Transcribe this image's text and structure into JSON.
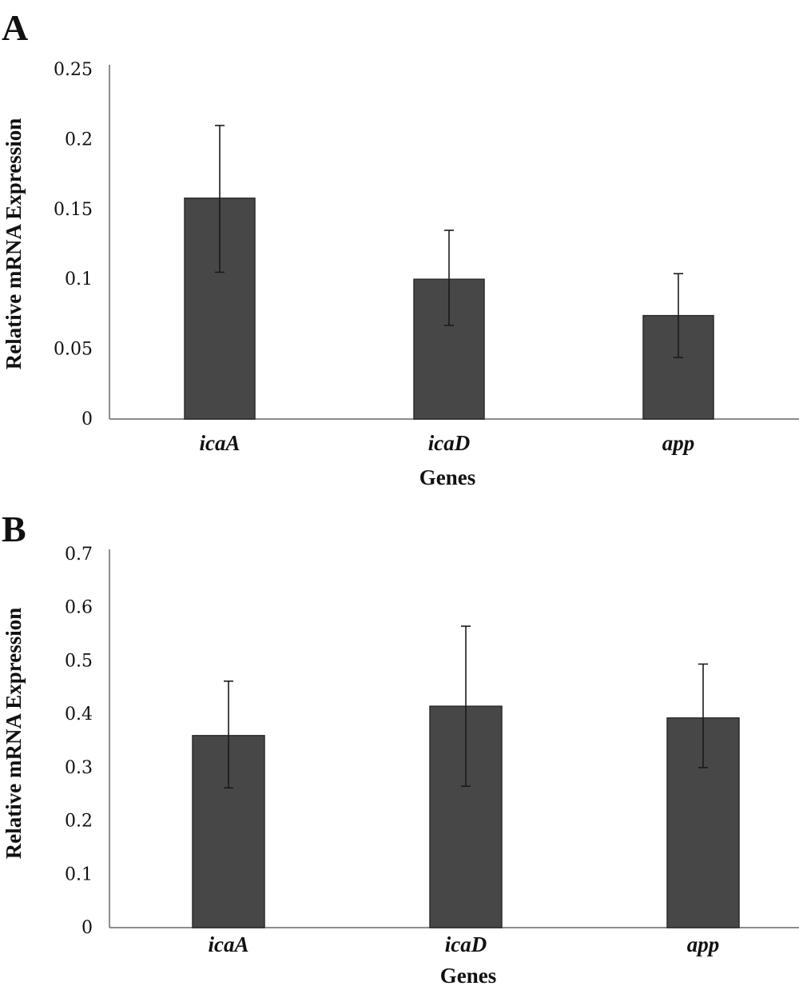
{
  "chart_data": [
    {
      "panel": "A",
      "type": "bar",
      "categories": [
        "icaA",
        "icaD",
        "app"
      ],
      "values": [
        0.158,
        0.1,
        0.074
      ],
      "error_upper": [
        0.21,
        0.135,
        0.104
      ],
      "error_lower": [
        0.105,
        0.067,
        0.044
      ],
      "ylabel": "Relative mRNA Expression",
      "xlabel": "Genes",
      "ylim": [
        0,
        0.25
      ],
      "yticks": [
        "0",
        "0.05",
        "0.1",
        "0.15",
        "0.2",
        "0.25"
      ],
      "grid": false,
      "bar_color": "#474747"
    },
    {
      "panel": "B",
      "type": "bar",
      "categories": [
        "icaA",
        "icaD",
        "app"
      ],
      "values": [
        0.36,
        0.415,
        0.393
      ],
      "error_upper": [
        0.462,
        0.565,
        0.494
      ],
      "error_lower": [
        0.262,
        0.265,
        0.3
      ],
      "ylabel": "Relative mRNA Expression",
      "xlabel": "Genes",
      "ylim": [
        0,
        0.7
      ],
      "yticks": [
        "0",
        "0.1",
        "0.2",
        "0.3",
        "0.4",
        "0.5",
        "0.6",
        "0.7"
      ],
      "grid": false,
      "bar_color": "#474747"
    }
  ]
}
